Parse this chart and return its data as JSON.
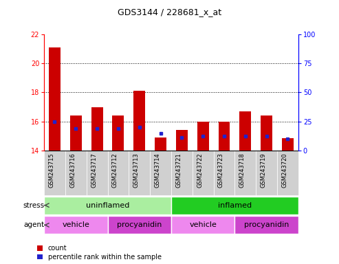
{
  "title": "GDS3144 / 228681_x_at",
  "samples": [
    "GSM243715",
    "GSM243716",
    "GSM243717",
    "GSM243712",
    "GSM243713",
    "GSM243714",
    "GSM243721",
    "GSM243722",
    "GSM243723",
    "GSM243718",
    "GSM243719",
    "GSM243720"
  ],
  "counts": [
    21.1,
    16.4,
    17.0,
    16.4,
    18.1,
    14.9,
    15.4,
    16.0,
    16.0,
    16.7,
    16.4,
    14.85
  ],
  "percentile_values": [
    16.0,
    15.5,
    15.5,
    15.5,
    15.6,
    15.2,
    14.88,
    15.0,
    15.0,
    15.0,
    15.0,
    14.8
  ],
  "ylim_left": [
    14,
    22
  ],
  "ylim_right": [
    0,
    100
  ],
  "yticks_left": [
    14,
    16,
    18,
    20,
    22
  ],
  "yticks_right": [
    0,
    25,
    50,
    75,
    100
  ],
  "bar_color": "#cc0000",
  "blue_color": "#2222cc",
  "bar_bottom": 14,
  "bar_width": 0.55,
  "stress_groups": [
    {
      "label": "uninflamed",
      "start": 0,
      "end": 6,
      "color": "#aaeea0"
    },
    {
      "label": "inflamed",
      "start": 6,
      "end": 12,
      "color": "#22cc22"
    }
  ],
  "agent_groups": [
    {
      "label": "vehicle",
      "start": 0,
      "end": 3,
      "color": "#ee88ee"
    },
    {
      "label": "procyanidin",
      "start": 3,
      "end": 6,
      "color": "#cc44cc"
    },
    {
      "label": "vehicle",
      "start": 6,
      "end": 9,
      "color": "#ee88ee"
    },
    {
      "label": "procyanidin",
      "start": 9,
      "end": 12,
      "color": "#cc44cc"
    }
  ],
  "legend_items": [
    {
      "label": "count",
      "color": "#cc0000"
    },
    {
      "label": "percentile rank within the sample",
      "color": "#2222cc"
    }
  ],
  "xtick_bg": "#d0d0d0",
  "plot_bg": "#ffffff"
}
